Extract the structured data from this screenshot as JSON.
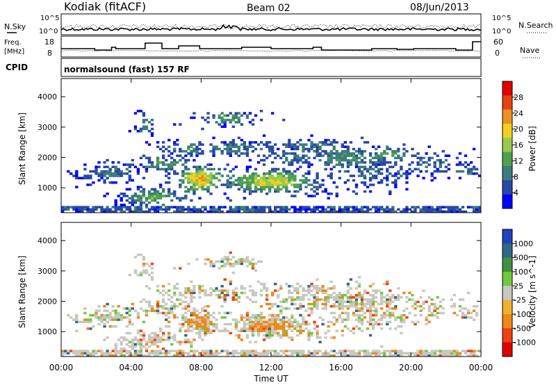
{
  "header": {
    "station": "Kodiak (fitACF)",
    "beam": "Beam 02",
    "date": "08/Jun/2013"
  },
  "noise_panel": {
    "left_label": "N.Sky",
    "right_label": "N.Search",
    "left_ticks": [
      "10^5",
      "10^0"
    ],
    "right_ticks": [
      "10^5",
      "10^0"
    ]
  },
  "freq_panel": {
    "left_label_1": "Freq.",
    "left_label_2": "[MHz]",
    "right_label": "Nave",
    "left_ticks": [
      "18",
      "8"
    ],
    "right_ticks": [
      "60",
      "0"
    ]
  },
  "cpid_panel": {
    "label": "CPID",
    "text": "normalsound (fast) 157 RF"
  },
  "colors": {
    "power": [
      "#0000ff",
      "#2848a8",
      "#3c7c7c",
      "#50a050",
      "#98c850",
      "#f0d020",
      "#f09020",
      "#e84010",
      "#e00000"
    ],
    "velocity": [
      "#e00000",
      "#f04010",
      "#f08818",
      "#f0b030",
      "#c8c8c0",
      "#70c840",
      "#409040",
      "#306888",
      "#2040c0"
    ]
  },
  "chart_data": [
    {
      "type": "heatmap",
      "title": "Power",
      "xlabel": "",
      "ylabel": "Slant Range [km]",
      "x_range": [
        "00:00",
        "00:00"
      ],
      "ylim": [
        180,
        4600
      ],
      "yticks": [
        "1000",
        "2000",
        "3000",
        "4000"
      ],
      "colorbar": {
        "label": "Power [dB]",
        "ticks": [
          "4",
          "8",
          "12",
          "16",
          "20",
          "24",
          "28"
        ],
        "range": [
          0,
          30
        ]
      }
    },
    {
      "type": "heatmap",
      "title": "Velocity",
      "xlabel": "Time UT",
      "ylabel": "Slant Range [km]",
      "x_range": [
        "00:00",
        "00:00"
      ],
      "xticks": [
        "00:00",
        "04:00",
        "08:00",
        "12:00",
        "16:00",
        "20:00",
        "00:00"
      ],
      "ylim": [
        180,
        4600
      ],
      "yticks": [
        "1000",
        "2000",
        "3000",
        "4000"
      ],
      "colorbar": {
        "label": "Velocity [m s^-1]",
        "ticks": [
          "1000",
          "500",
          "100",
          "25",
          "-25",
          "-100",
          "-500",
          "-1000"
        ]
      }
    }
  ]
}
